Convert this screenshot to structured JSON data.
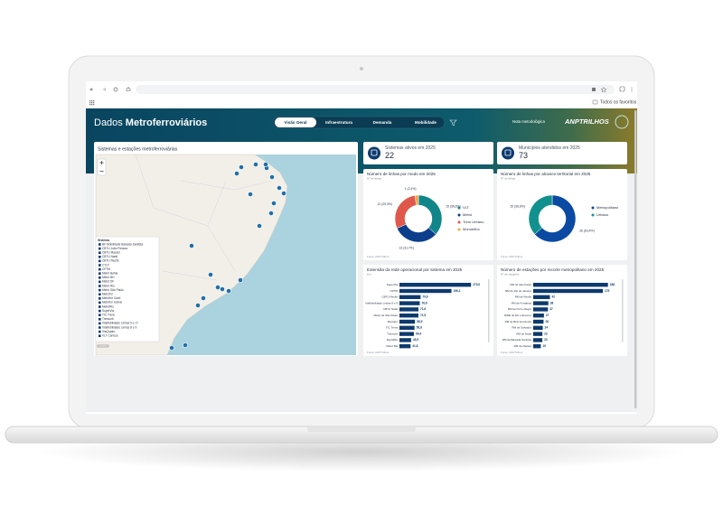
{
  "browser": {
    "bookmarks": "Todos os favoritos"
  },
  "header": {
    "title_light": "Dados",
    "title_bold": "Metroferroviários",
    "tabs": [
      "Visão Geral",
      "Infraestrutura",
      "Demanda",
      "Mobilidade"
    ],
    "note": "Nota metodológica",
    "logo": "ANPTRILHOS"
  },
  "map": {
    "title": "Sistemas e estações metroferroviárias",
    "legend_title": "Sistema",
    "legend_items": [
      "BF Mobilidade Baixada Santista",
      "CBTU João Pessoa",
      "CBTU Maceió",
      "CBTU Natal",
      "CBTU Recife",
      "CTLF",
      "CPTM",
      "Metrô Bahia",
      "Metrô BH",
      "Metrô DF",
      "Metrô Rio",
      "Metrô São Paulo",
      "Metrofor",
      "Metrôfor Cariri",
      "Metrôfor Sobral",
      "MetrôRio",
      "SuperVia",
      "TIC Trens",
      "Trensurb",
      "ViaMobilidade Linhas 5 e 17",
      "ViaMobilidade Linhas 8 e 9",
      "ViaQuatro",
      "VLT Carioca"
    ]
  },
  "kpis": [
    {
      "label": "Sistemas ativos em 2025",
      "value": 22
    },
    {
      "label": "Municípios atendidos em 2025",
      "value": 73
    }
  ],
  "chart_data": [
    {
      "type": "donut",
      "title": "Número de linhas por modo em 2025",
      "subtitle": "Nº de linhas",
      "categories": [
        "VLT",
        "Metrô",
        "Trem Urbano",
        "Monotrilho"
      ],
      "values": [
        15,
        13,
        12,
        1
      ],
      "value_labels": [
        "15 (36,6%)",
        "13 (31,7%)",
        "12 (29,3%)",
        "1 (2,4%)"
      ],
      "colors": [
        "#11868a",
        "#0c3e8c",
        "#e0584c",
        "#f2a645"
      ],
      "source": "Fonte: ANPTrilhos"
    },
    {
      "type": "donut",
      "title": "Número de linhas por alcance territorial em 2025",
      "subtitle": "Nº de linhas",
      "categories": [
        "Metropolitano",
        "Urbano"
      ],
      "values": [
        26,
        15
      ],
      "value_labels": [
        "26 (63,4%)",
        "15 (36,6%)"
      ],
      "colors": [
        "#0b4aa2",
        "#11918e"
      ],
      "source": "Fonte: ANPTrilhos"
    },
    {
      "type": "hbar",
      "title": "Extensão da rede operacional por sistema em 2025",
      "subtitle": "Km",
      "categories": [
        "SuperVia",
        "CPTM",
        "CBTU Recife",
        "ViaMobilidade Linhas 8 e 9",
        "CBTU Natal",
        "Metrô de São Paulo",
        "Metrofor",
        "TIC Trens",
        "Trensurb",
        "MetrôRio",
        "Metrô BH"
      ],
      "values": [
        270.0,
        196.1,
        79.6,
        76.6,
        71.6,
        71.5,
        58.5,
        56.8,
        54.4,
        43.9,
        41.8
      ],
      "value_labels": [
        "270,0",
        "196,1",
        "79,6",
        "76,6",
        "71,6",
        "71,5",
        "58,5",
        "56,8",
        "54,4",
        "43,9",
        "41,8"
      ],
      "xlim": [
        0,
        300
      ],
      "color": "#0d3a6e",
      "source": "Fonte: ANPTrilhos"
    },
    {
      "type": "hbar",
      "title": "Número de estações por recorte metropolitano em 2025",
      "subtitle": "Nº de estações",
      "categories": [
        "RM de São Paulo",
        "RM do Rio de Janeiro",
        "RM de Recife",
        "RM de Fortaleza",
        "RM de Porto Alegre",
        "RIDE do DF e Entorno",
        "RM de Belo Horizonte",
        "RM de Salvador",
        "RM de Natal",
        "RM da Baixada Santista",
        "RM de Maceió"
      ],
      "values": [
        188,
        175,
        42,
        38,
        37,
        27,
        26,
        24,
        23,
        23,
        19
      ],
      "xlim": [
        0,
        200
      ],
      "color": "#0d3a6e",
      "source": "Fonte: ANPTrilhos"
    }
  ]
}
